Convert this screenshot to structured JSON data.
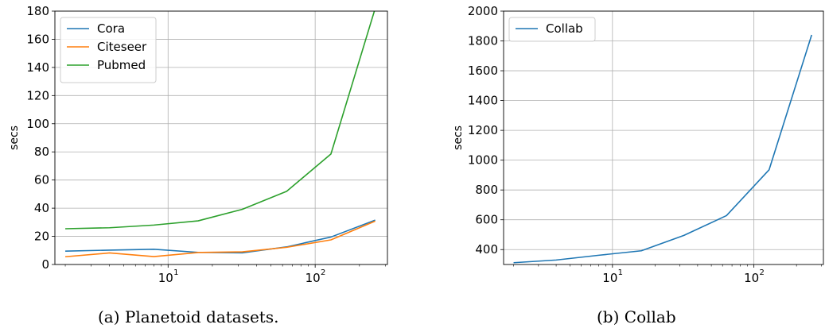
{
  "captions": {
    "a": "(a) Planetoid datasets.",
    "b": "(b) Collab"
  },
  "chart_data": [
    {
      "type": "line",
      "title": "",
      "xlabel": "",
      "ylabel": "secs",
      "xscale": "log",
      "xlim": [
        1.7,
        310
      ],
      "ylim": [
        0,
        180
      ],
      "x_tick_labels": [
        {
          "value": 10,
          "base": "10",
          "exp": "1"
        },
        {
          "value": 100,
          "base": "10",
          "exp": "2"
        }
      ],
      "y_ticks": [
        0,
        20,
        40,
        60,
        80,
        100,
        120,
        140,
        160,
        180
      ],
      "grid": true,
      "legend_position": "top-left",
      "x": [
        2,
        4,
        8,
        16,
        32,
        64,
        128,
        256
      ],
      "series": [
        {
          "name": "Cora",
          "color": "#1f77b4",
          "values": [
            9.5,
            10.2,
            10.8,
            8.6,
            8.3,
            12.5,
            19.5,
            31.5
          ]
        },
        {
          "name": "Citeseer",
          "color": "#ff7f0e",
          "values": [
            5.5,
            8.2,
            5.6,
            8.5,
            9.0,
            12.2,
            17.5,
            30.8
          ]
        },
        {
          "name": "Pubmed",
          "color": "#2ca02c",
          "values": [
            25.4,
            26.1,
            28.0,
            31.0,
            39.2,
            52.0,
            78.5,
            182
          ]
        }
      ]
    },
    {
      "type": "line",
      "title": "",
      "xlabel": "",
      "ylabel": "secs",
      "xscale": "log",
      "xlim": [
        1.7,
        310
      ],
      "ylim": [
        300,
        2000
      ],
      "x_tick_labels": [
        {
          "value": 10,
          "base": "10",
          "exp": "1"
        },
        {
          "value": 100,
          "base": "10",
          "exp": "2"
        }
      ],
      "y_ticks": [
        400,
        600,
        800,
        1000,
        1200,
        1400,
        1600,
        1800,
        2000
      ],
      "grid": true,
      "legend_position": "top-left",
      "x": [
        2,
        4,
        8,
        16,
        32,
        64,
        128,
        256
      ],
      "series": [
        {
          "name": "Collab",
          "color": "#1f77b4",
          "values": [
            312,
            330,
            362,
            392,
            495,
            628,
            935,
            1840
          ]
        }
      ]
    }
  ]
}
